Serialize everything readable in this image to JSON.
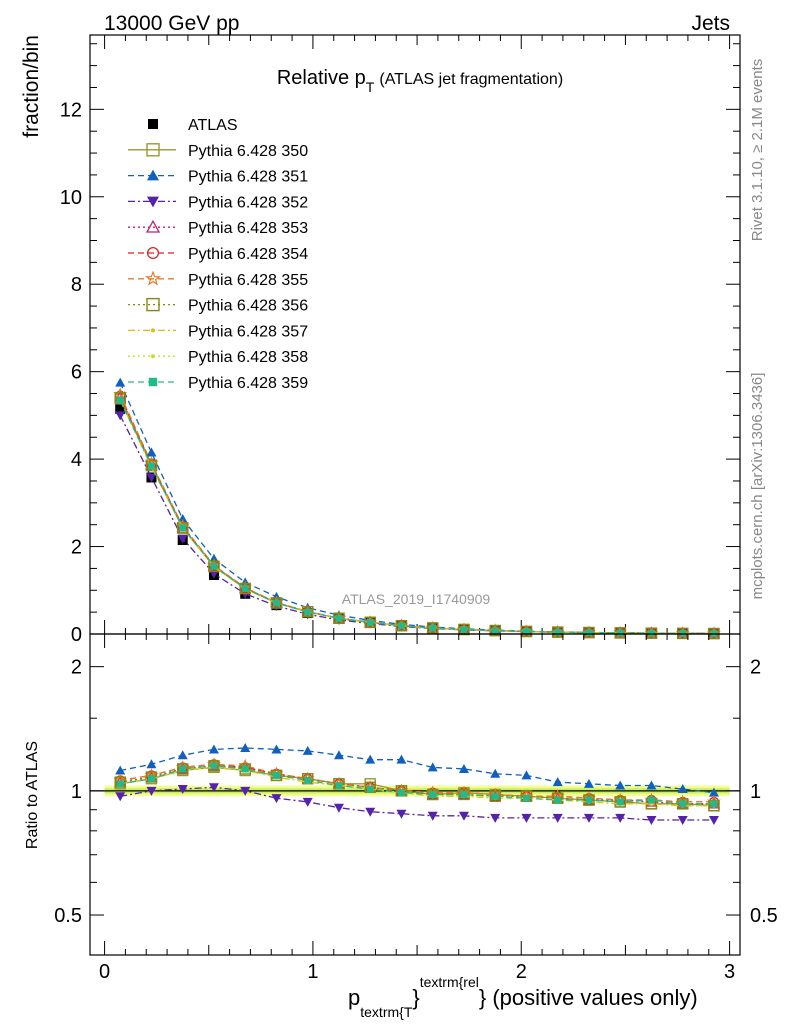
{
  "header": {
    "energy_label": "13000 GeV pp",
    "category_label": "Jets"
  },
  "side_labels": {
    "rivet": "Rivet 3.1.10, ≥ 2.1M events",
    "mcplots": "mcplots.cern.ch [arXiv:1306.3436]"
  },
  "chart_data": [
    {
      "type": "line",
      "title": "Relative p_T (ATLAS jet fragmentation)",
      "title_main": "Relative p",
      "title_sub": "T",
      "title_rest": "(ATLAS jet fragmentation)",
      "ylabel": "fraction/bin",
      "analysis_id": "ATLAS_2019_I1740909",
      "xlim": [
        -0.07,
        3.05
      ],
      "ylim": [
        0,
        13.7
      ],
      "yticks": [
        0,
        2,
        4,
        6,
        8,
        10,
        12
      ],
      "x": [
        0.075,
        0.225,
        0.375,
        0.525,
        0.675,
        0.825,
        0.975,
        1.125,
        1.275,
        1.425,
        1.575,
        1.725,
        1.875,
        2.025,
        2.175,
        2.325,
        2.475,
        2.625,
        2.775,
        2.925
      ],
      "legend_position": "top-left",
      "series": [
        {
          "name": "ATLAS",
          "color": "#000000",
          "marker": "square-filled",
          "dash": "none",
          "values": [
            5.15,
            3.58,
            2.15,
            1.35,
            0.92,
            0.66,
            0.48,
            0.35,
            0.26,
            0.19,
            0.14,
            0.105,
            0.08,
            0.06,
            0.045,
            0.035,
            0.027,
            0.02,
            0.015,
            0.011
          ]
        },
        {
          "name": "Pythia 6.428 350",
          "color": "#999933",
          "marker": "square-open",
          "dash": "solid",
          "values": [
            5.38,
            3.85,
            2.42,
            1.54,
            1.04,
            0.71,
            0.51,
            0.36,
            0.27,
            0.19,
            0.14,
            0.104,
            0.079,
            0.058,
            0.043,
            0.033,
            0.025,
            0.019,
            0.014,
            0.01
          ]
        },
        {
          "name": "Pythia 6.428 351",
          "color": "#1060c0",
          "marker": "triangle-up-filled",
          "dash": "dashed",
          "values": [
            5.75,
            4.15,
            2.63,
            1.72,
            1.18,
            0.85,
            0.6,
            0.43,
            0.31,
            0.22,
            0.16,
            0.12,
            0.09,
            0.065,
            0.047,
            0.036,
            0.027,
            0.02,
            0.015,
            0.011
          ]
        },
        {
          "name": "Pythia 6.428 352",
          "color": "#5522aa",
          "marker": "triangle-down-filled",
          "dash": "dashdot",
          "values": [
            5.0,
            3.58,
            2.18,
            1.38,
            0.92,
            0.64,
            0.45,
            0.32,
            0.24,
            0.17,
            0.125,
            0.094,
            0.072,
            0.054,
            0.04,
            0.031,
            0.024,
            0.018,
            0.013,
            0.01
          ]
        },
        {
          "name": "Pythia 6.428 353",
          "color": "#bb2277",
          "marker": "triangle-up-open",
          "dash": "dotted",
          "values": [
            5.42,
            3.88,
            2.45,
            1.56,
            1.05,
            0.72,
            0.51,
            0.36,
            0.265,
            0.19,
            0.138,
            0.103,
            0.078,
            0.058,
            0.043,
            0.033,
            0.025,
            0.019,
            0.014,
            0.01
          ]
        },
        {
          "name": "Pythia 6.428 354",
          "color": "#dd2222",
          "marker": "circle-open",
          "dash": "dashed",
          "values": [
            5.45,
            3.9,
            2.46,
            1.57,
            1.05,
            0.72,
            0.51,
            0.36,
            0.265,
            0.19,
            0.138,
            0.103,
            0.078,
            0.058,
            0.043,
            0.033,
            0.025,
            0.019,
            0.014,
            0.0105
          ]
        },
        {
          "name": "Pythia 6.428 355",
          "color": "#ee7722",
          "marker": "star-open",
          "dash": "dashed",
          "values": [
            5.48,
            3.9,
            2.47,
            1.57,
            1.06,
            0.72,
            0.51,
            0.36,
            0.265,
            0.19,
            0.138,
            0.103,
            0.078,
            0.058,
            0.043,
            0.033,
            0.025,
            0.019,
            0.014,
            0.0105
          ]
        },
        {
          "name": "Pythia 6.428 356",
          "color": "#888811",
          "marker": "square-open",
          "dash": "dotted",
          "values": [
            5.4,
            3.86,
            2.43,
            1.55,
            1.04,
            0.71,
            0.51,
            0.36,
            0.265,
            0.19,
            0.137,
            0.103,
            0.078,
            0.058,
            0.043,
            0.033,
            0.025,
            0.019,
            0.014,
            0.0102
          ]
        },
        {
          "name": "Pythia 6.428 357",
          "color": "#ddbb11",
          "marker": "point",
          "dash": "dashdot",
          "values": [
            5.35,
            3.82,
            2.42,
            1.54,
            1.03,
            0.71,
            0.5,
            0.36,
            0.263,
            0.188,
            0.136,
            0.102,
            0.077,
            0.057,
            0.042,
            0.032,
            0.024,
            0.018,
            0.014,
            0.01
          ]
        },
        {
          "name": "Pythia 6.428 358",
          "color": "#ccdd22",
          "marker": "point",
          "dash": "dotted",
          "values": [
            5.35,
            3.82,
            2.42,
            1.54,
            1.03,
            0.71,
            0.5,
            0.36,
            0.263,
            0.188,
            0.136,
            0.102,
            0.077,
            0.057,
            0.042,
            0.032,
            0.024,
            0.018,
            0.014,
            0.01
          ]
        },
        {
          "name": "Pythia 6.428 359",
          "color": "#22bb88",
          "marker": "square-small-filled",
          "dash": "dashed",
          "values": [
            5.35,
            3.84,
            2.43,
            1.55,
            1.04,
            0.71,
            0.5,
            0.36,
            0.264,
            0.189,
            0.137,
            0.102,
            0.077,
            0.057,
            0.042,
            0.032,
            0.024,
            0.018,
            0.014,
            0.01
          ]
        }
      ]
    },
    {
      "type": "line",
      "ylabel": "Ratio to ATLAS",
      "xlabel": "p_{textrm{T}}^{textrm{rel}} (positive values only)",
      "xlabel_main": "p",
      "xlabel_sub": "textrm{T",
      "xlabel_close": "}",
      "xlabel_sup": "textrm{rel",
      "xlabel_rest": "} (positive values only)",
      "xlim": [
        -0.07,
        3.05
      ],
      "ylim": [
        0.4,
        2.4
      ],
      "scale": "log",
      "yticks": [
        0.5,
        1,
        2
      ],
      "yticklabels": [
        "0.5",
        "1",
        "2"
      ],
      "xticks": [
        0,
        1,
        2,
        3
      ],
      "xticklabels": [
        "0",
        "1",
        "2",
        "3"
      ],
      "reference_line": 1,
      "uncertainty_band_inner": [
        0.985,
        1.015
      ],
      "uncertainty_band_outer": [
        0.97,
        1.03
      ],
      "x": [
        0.075,
        0.225,
        0.375,
        0.525,
        0.675,
        0.825,
        0.975,
        1.125,
        1.275,
        1.425,
        1.575,
        1.725,
        1.875,
        2.025,
        2.175,
        2.325,
        2.475,
        2.625,
        2.775,
        2.925
      ],
      "series": [
        {
          "name": "Pythia 6.428 350",
          "values": [
            1.04,
            1.07,
            1.12,
            1.14,
            1.12,
            1.09,
            1.07,
            1.04,
            1.04,
            1.0,
            0.98,
            0.99,
            0.98,
            0.97,
            0.96,
            0.95,
            0.94,
            0.93,
            0.93,
            0.92
          ]
        },
        {
          "name": "Pythia 6.428 351",
          "values": [
            1.12,
            1.16,
            1.22,
            1.26,
            1.27,
            1.26,
            1.25,
            1.22,
            1.19,
            1.19,
            1.14,
            1.13,
            1.1,
            1.09,
            1.05,
            1.04,
            1.03,
            1.03,
            1.01,
            0.99
          ]
        },
        {
          "name": "Pythia 6.428 352",
          "values": [
            0.97,
            1.0,
            1.01,
            1.02,
            1.0,
            0.96,
            0.94,
            0.91,
            0.89,
            0.88,
            0.87,
            0.87,
            0.86,
            0.86,
            0.86,
            0.86,
            0.86,
            0.85,
            0.85,
            0.85
          ]
        },
        {
          "name": "Pythia 6.428 353",
          "values": [
            1.05,
            1.08,
            1.13,
            1.15,
            1.14,
            1.1,
            1.07,
            1.04,
            1.02,
            1.0,
            0.98,
            0.98,
            0.97,
            0.97,
            0.96,
            0.95,
            0.95,
            0.94,
            0.93,
            0.93
          ]
        },
        {
          "name": "Pythia 6.428 354",
          "values": [
            1.06,
            1.09,
            1.14,
            1.16,
            1.14,
            1.1,
            1.07,
            1.04,
            1.02,
            1.0,
            0.99,
            0.99,
            0.98,
            0.97,
            0.97,
            0.96,
            0.95,
            0.95,
            0.94,
            0.94
          ]
        },
        {
          "name": "Pythia 6.428 355",
          "values": [
            1.06,
            1.09,
            1.14,
            1.16,
            1.15,
            1.1,
            1.07,
            1.04,
            1.02,
            1.0,
            0.99,
            0.99,
            0.98,
            0.97,
            0.97,
            0.96,
            0.95,
            0.95,
            0.94,
            0.94
          ]
        },
        {
          "name": "Pythia 6.428 356",
          "values": [
            1.05,
            1.08,
            1.13,
            1.15,
            1.13,
            1.09,
            1.07,
            1.04,
            1.02,
            1.0,
            0.98,
            0.98,
            0.97,
            0.97,
            0.96,
            0.95,
            0.94,
            0.93,
            0.93,
            0.92
          ]
        },
        {
          "name": "Pythia 6.428 357",
          "values": [
            1.04,
            1.07,
            1.12,
            1.14,
            1.12,
            1.08,
            1.05,
            1.03,
            1.01,
            0.99,
            0.97,
            0.97,
            0.96,
            0.96,
            0.95,
            0.94,
            0.93,
            0.93,
            0.92,
            0.92
          ]
        },
        {
          "name": "Pythia 6.428 358",
          "values": [
            1.04,
            1.07,
            1.12,
            1.14,
            1.12,
            1.08,
            1.05,
            1.03,
            1.01,
            0.99,
            0.97,
            0.97,
            0.96,
            0.96,
            0.95,
            0.94,
            0.93,
            0.93,
            0.92,
            0.92
          ]
        },
        {
          "name": "Pythia 6.428 359",
          "values": [
            1.04,
            1.07,
            1.13,
            1.15,
            1.13,
            1.09,
            1.06,
            1.03,
            1.01,
            0.99,
            0.98,
            0.98,
            0.97,
            0.96,
            0.95,
            0.95,
            0.94,
            0.95,
            0.93,
            0.93
          ]
        }
      ]
    }
  ]
}
